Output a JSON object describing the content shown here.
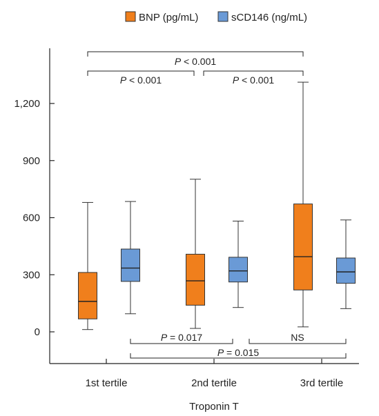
{
  "colors": {
    "bnp": "#f07f1c",
    "scd146": "#6a9ad6",
    "axis": "#222222",
    "box_edge": "#333333"
  },
  "chart_data": {
    "type": "boxplot",
    "xlabel": "Troponin T",
    "ylabel": "",
    "ylim": [
      -160,
      1480
    ],
    "yticks": [
      {
        "value": 0,
        "label": "0"
      },
      {
        "value": 300,
        "label": "300"
      },
      {
        "value": 600,
        "label": "600"
      },
      {
        "value": 900,
        "label": "900"
      },
      {
        "value": 1200,
        "label": "1,200"
      }
    ],
    "categories": [
      "1st tertile",
      "2nd tertile",
      "3rd tertile"
    ],
    "legend": {
      "position": "top"
    },
    "series": [
      {
        "name": "BNP (pg/mL)",
        "color": "#f07f1c",
        "boxes": [
          {
            "min": 12,
            "q1": 68,
            "median": 160,
            "q3": 312,
            "max": 680
          },
          {
            "min": 18,
            "q1": 140,
            "median": 268,
            "q3": 408,
            "max": 802
          },
          {
            "min": 26,
            "q1": 220,
            "median": 395,
            "q3": 672,
            "max": 1312
          }
        ]
      },
      {
        "name": "sCD146 (ng/mL)",
        "color": "#6a9ad6",
        "boxes": [
          {
            "min": 95,
            "q1": 265,
            "median": 335,
            "q3": 435,
            "max": 685
          },
          {
            "min": 128,
            "q1": 262,
            "median": 320,
            "q3": 392,
            "max": 582
          },
          {
            "min": 122,
            "q1": 255,
            "median": 315,
            "q3": 388,
            "max": 588
          }
        ]
      }
    ],
    "annotations": [
      {
        "series": 0,
        "from": 0,
        "to": 2,
        "level": "top",
        "label_prefix": "P",
        "label_rest": " < 0.001"
      },
      {
        "series": 0,
        "from": 0,
        "to": 1,
        "level": "upper",
        "label_prefix": "P",
        "label_rest": " < 0.001"
      },
      {
        "series": 0,
        "from": 1,
        "to": 2,
        "level": "upper",
        "label_prefix": "P",
        "label_rest": " < 0.001"
      },
      {
        "series": 1,
        "from": 0,
        "to": 1,
        "level": "lower",
        "label_prefix": "P",
        "label_rest": " = 0.017"
      },
      {
        "series": 1,
        "from": 1,
        "to": 2,
        "level": "lower",
        "label_prefix": "",
        "label_rest": "NS"
      },
      {
        "series": 1,
        "from": 0,
        "to": 2,
        "level": "bottom",
        "label_prefix": "P",
        "label_rest": " = 0.015"
      }
    ]
  }
}
